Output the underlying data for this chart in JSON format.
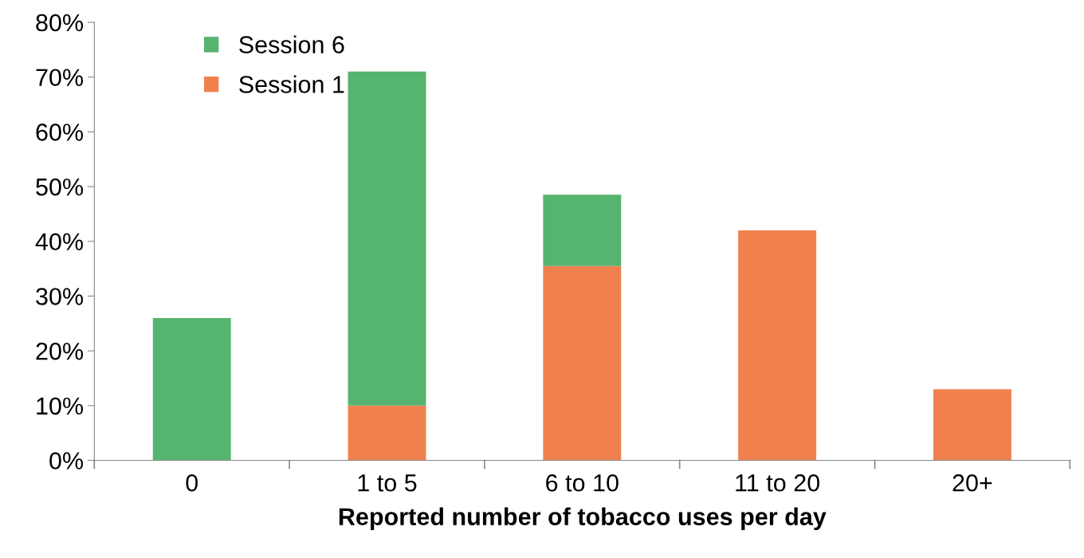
{
  "chart_data": {
    "type": "bar",
    "stacked": true,
    "xlabel": "Reported number of tobacco uses per day",
    "categories": [
      "0",
      "1 to 5",
      "6 to 10",
      "11 to 20",
      "20+"
    ],
    "series": [
      {
        "name": "Session 1",
        "color": "#f0814f",
        "values": [
          0,
          10,
          35.5,
          42,
          13
        ]
      },
      {
        "name": "Session 6",
        "color": "#55b46e",
        "values": [
          26,
          61,
          13,
          0,
          0
        ]
      }
    ],
    "ylim": [
      0,
      80
    ],
    "yticks": [
      {
        "value": 0,
        "label": "0%"
      },
      {
        "value": 10,
        "label": "10%"
      },
      {
        "value": 20,
        "label": "20%"
      },
      {
        "value": 30,
        "label": "30%"
      },
      {
        "value": 40,
        "label": "40%"
      },
      {
        "value": 50,
        "label": "50%"
      },
      {
        "value": 60,
        "label": "60%"
      },
      {
        "value": 70,
        "label": "70%"
      },
      {
        "value": 80,
        "label": "80%"
      }
    ],
    "grid": false,
    "legend": "top left"
  }
}
